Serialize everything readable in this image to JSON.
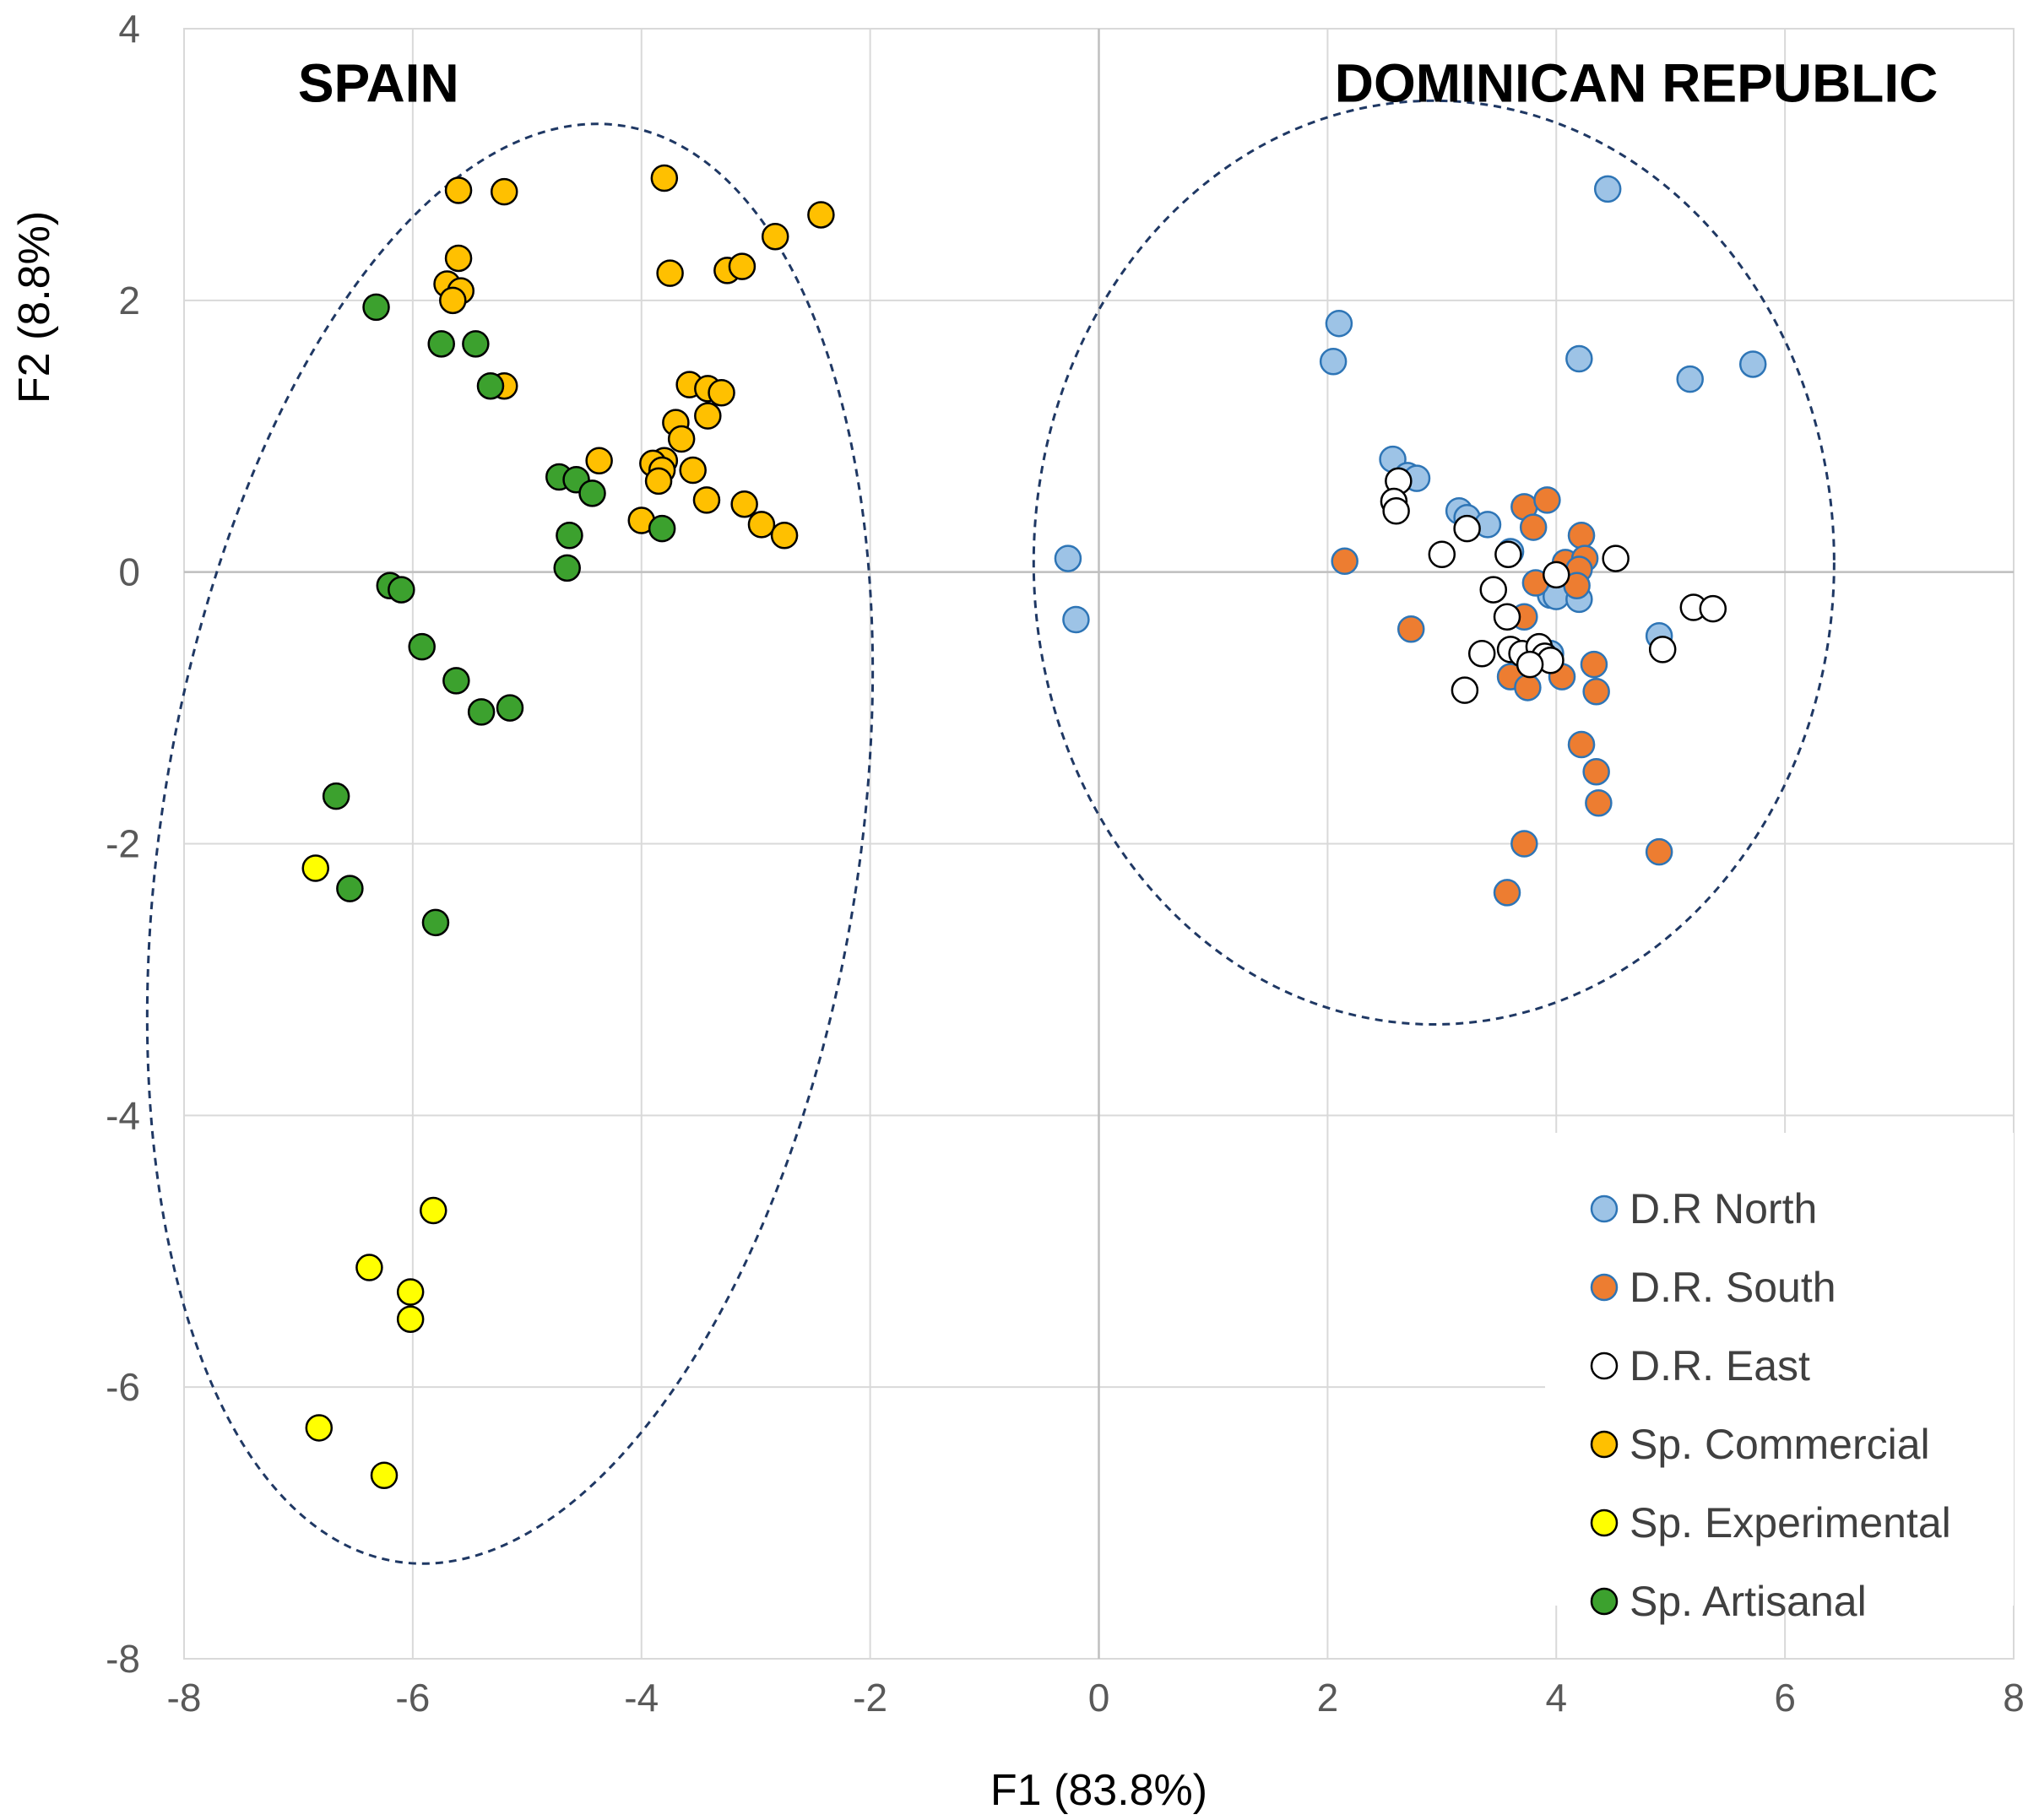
{
  "chart_data": {
    "type": "scatter",
    "xlabel": "F1 (83.8%)",
    "ylabel": "F2 (8.8%)",
    "xlim": [
      -8,
      8
    ],
    "ylim": [
      -8,
      4
    ],
    "xticks": [
      -8,
      -6,
      -4,
      -2,
      0,
      2,
      4,
      6,
      8
    ],
    "yticks": [
      -8,
      -6,
      -4,
      -2,
      0,
      2,
      4
    ],
    "grid": true,
    "legend_position": "bottom-right",
    "annotations": [
      {
        "text": "SPAIN",
        "x": -6.3,
        "y": 3.6
      },
      {
        "text": "DOMINICAN REPUBLIC",
        "x": 4.7,
        "y": 3.6
      }
    ],
    "ellipses": [
      {
        "name": "Spain group",
        "cx": -5.15,
        "cy": -2.0,
        "rx": 3.05,
        "ry": 5.35,
        "angle": 9
      },
      {
        "name": "Dominican Republic group",
        "cx": 2.93,
        "cy": 0.07,
        "rx": 3.5,
        "ry": 3.4,
        "angle": 0
      }
    ],
    "series": [
      {
        "name": "D.R North",
        "color": "#9dc3e6",
        "edge": "#2e75b6",
        "points": [
          [
            4.45,
            2.82
          ],
          [
            2.1,
            1.83
          ],
          [
            2.05,
            1.55
          ],
          [
            4.2,
            1.57
          ],
          [
            5.17,
            1.42
          ],
          [
            5.72,
            1.53
          ],
          [
            2.57,
            0.83
          ],
          [
            2.7,
            0.71
          ],
          [
            2.78,
            0.69
          ],
          [
            3.15,
            0.45
          ],
          [
            3.22,
            0.4
          ],
          [
            3.4,
            0.35
          ],
          [
            3.6,
            0.15
          ],
          [
            -0.27,
            0.1
          ],
          [
            -0.2,
            -0.35
          ],
          [
            3.95,
            -0.17
          ],
          [
            4.0,
            -0.18
          ],
          [
            4.2,
            -0.2
          ],
          [
            4.9,
            -0.47
          ],
          [
            3.7,
            -0.63
          ],
          [
            3.95,
            -0.6
          ]
        ]
      },
      {
        "name": "D.R. South",
        "color": "#ed7d31",
        "edge": "#2e75b6",
        "points": [
          [
            3.72,
            0.48
          ],
          [
            3.92,
            0.53
          ],
          [
            3.8,
            0.33
          ],
          [
            4.22,
            0.27
          ],
          [
            2.15,
            0.08
          ],
          [
            4.08,
            0.07
          ],
          [
            4.25,
            0.1
          ],
          [
            4.2,
            0.02
          ],
          [
            3.82,
            -0.08
          ],
          [
            4.18,
            -0.1
          ],
          [
            3.72,
            -0.33
          ],
          [
            2.73,
            -0.42
          ],
          [
            3.88,
            -0.6
          ],
          [
            3.6,
            -0.77
          ],
          [
            4.05,
            -0.77
          ],
          [
            3.75,
            -0.85
          ],
          [
            4.33,
            -0.68
          ],
          [
            4.35,
            -0.88
          ],
          [
            4.22,
            -1.27
          ],
          [
            4.35,
            -1.47
          ],
          [
            4.37,
            -1.7
          ],
          [
            3.72,
            -2.0
          ],
          [
            4.9,
            -2.06
          ],
          [
            3.57,
            -2.36
          ]
        ]
      },
      {
        "name": "D.R. East",
        "color": "#ffffff",
        "edge": "#000000",
        "points": [
          [
            2.62,
            0.67
          ],
          [
            2.58,
            0.52
          ],
          [
            2.6,
            0.45
          ],
          [
            3.22,
            0.32
          ],
          [
            3.0,
            0.13
          ],
          [
            3.58,
            0.13
          ],
          [
            4.52,
            0.1
          ],
          [
            4.0,
            -0.02
          ],
          [
            3.45,
            -0.13
          ],
          [
            5.2,
            -0.26
          ],
          [
            5.37,
            -0.27
          ],
          [
            3.57,
            -0.33
          ],
          [
            3.35,
            -0.6
          ],
          [
            3.6,
            -0.57
          ],
          [
            3.7,
            -0.6
          ],
          [
            3.85,
            -0.55
          ],
          [
            3.9,
            -0.62
          ],
          [
            3.95,
            -0.65
          ],
          [
            3.77,
            -0.68
          ],
          [
            4.93,
            -0.57
          ],
          [
            3.2,
            -0.87
          ]
        ]
      },
      {
        "name": "Sp. Commercial",
        "color": "#ffc000",
        "edge": "#000000",
        "points": [
          [
            -3.8,
            2.9
          ],
          [
            -5.6,
            2.81
          ],
          [
            -5.2,
            2.8
          ],
          [
            -2.43,
            2.63
          ],
          [
            -2.83,
            2.47
          ],
          [
            -5.6,
            2.31
          ],
          [
            -3.75,
            2.2
          ],
          [
            -3.25,
            2.22
          ],
          [
            -3.12,
            2.25
          ],
          [
            -5.7,
            2.12
          ],
          [
            -5.58,
            2.07
          ],
          [
            -5.65,
            2.0
          ],
          [
            -5.2,
            1.37
          ],
          [
            -3.58,
            1.38
          ],
          [
            -3.42,
            1.35
          ],
          [
            -3.3,
            1.32
          ],
          [
            -3.42,
            1.15
          ],
          [
            -3.7,
            1.1
          ],
          [
            -3.65,
            0.98
          ],
          [
            -3.8,
            0.82
          ],
          [
            -3.9,
            0.8
          ],
          [
            -3.82,
            0.75
          ],
          [
            -3.55,
            0.75
          ],
          [
            -4.37,
            0.82
          ],
          [
            -3.85,
            0.67
          ],
          [
            -3.43,
            0.53
          ],
          [
            -3.1,
            0.5
          ],
          [
            -4.0,
            0.38
          ],
          [
            -2.95,
            0.35
          ],
          [
            -2.75,
            0.27
          ]
        ]
      },
      {
        "name": "Sp. Experimental",
        "color": "#ffff00",
        "edge": "#000000",
        "points": [
          [
            -6.85,
            -2.18
          ],
          [
            -5.82,
            -4.7
          ],
          [
            -6.38,
            -5.12
          ],
          [
            -6.02,
            -5.3
          ],
          [
            -6.02,
            -5.5
          ],
          [
            -6.82,
            -6.3
          ],
          [
            -6.25,
            -6.65
          ]
        ]
      },
      {
        "name": "Sp. Artisanal",
        "color": "#3ca12e",
        "edge": "#000000",
        "points": [
          [
            -6.32,
            1.95
          ],
          [
            -5.75,
            1.68
          ],
          [
            -5.45,
            1.68
          ],
          [
            -5.32,
            1.37
          ],
          [
            -4.72,
            0.7
          ],
          [
            -4.57,
            0.68
          ],
          [
            -4.43,
            0.58
          ],
          [
            -4.63,
            0.27
          ],
          [
            -3.82,
            0.32
          ],
          [
            -4.65,
            0.03
          ],
          [
            -6.2,
            -0.1
          ],
          [
            -6.1,
            -0.13
          ],
          [
            -5.92,
            -0.55
          ],
          [
            -5.62,
            -0.8
          ],
          [
            -5.4,
            -1.03
          ],
          [
            -5.15,
            -1.0
          ],
          [
            -6.67,
            -1.65
          ],
          [
            -6.55,
            -2.33
          ],
          [
            -5.8,
            -2.58
          ]
        ]
      }
    ]
  }
}
